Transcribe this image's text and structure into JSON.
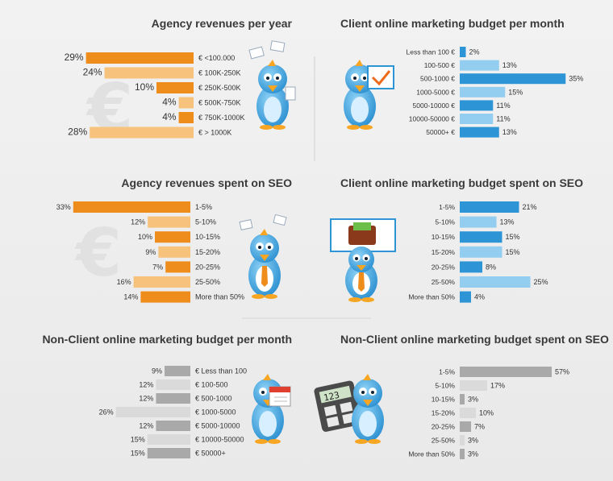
{
  "chart_data": [
    {
      "type": "bar",
      "orientation": "horizontal-left",
      "title": "Agency revenues per year",
      "categories": [
        "€ <100.000",
        "€ 100K-250K",
        "€ 250K-500K",
        "€ 500K-750K",
        "€ 750K-1000K",
        "€ > 1000K"
      ],
      "values": [
        29,
        24,
        10,
        4,
        4,
        28
      ],
      "value_labels": [
        "29%",
        "24%",
        "10%",
        "4%",
        "4%",
        "28%"
      ],
      "colors": [
        "#ee8c1c",
        "#f7c27b",
        "#ee8c1c",
        "#f7c27b",
        "#ee8c1c",
        "#f7c27b"
      ]
    },
    {
      "type": "bar",
      "orientation": "horizontal-right",
      "title": "Client online marketing budget per month",
      "categories": [
        "Less than 100 €",
        "100-500 €",
        "500-1000 €",
        "1000-5000 €",
        "5000-10000 €",
        "10000-50000 €",
        "50000+ €"
      ],
      "values": [
        2,
        13,
        35,
        15,
        11,
        11,
        13
      ],
      "value_labels": [
        "2%",
        "13%",
        "35%",
        "15%",
        "11%",
        "11%",
        "13%"
      ],
      "colors": [
        "#2d94d6",
        "#93cdf0",
        "#2d94d6",
        "#93cdf0",
        "#2d94d6",
        "#93cdf0",
        "#2d94d6"
      ]
    },
    {
      "type": "bar",
      "orientation": "horizontal-left",
      "title": "Agency revenues spent on SEO",
      "categories": [
        "1-5%",
        "5-10%",
        "10-15%",
        "15-20%",
        "20-25%",
        "25-50%",
        "More than 50%"
      ],
      "values": [
        33,
        12,
        10,
        9,
        7,
        16,
        14
      ],
      "value_labels": [
        "33%",
        "12%",
        "10%",
        "9%",
        "7%",
        "16%",
        "14%"
      ],
      "colors": [
        "#ee8c1c",
        "#f7c27b",
        "#ee8c1c",
        "#f7c27b",
        "#ee8c1c",
        "#f7c27b",
        "#ee8c1c"
      ]
    },
    {
      "type": "bar",
      "orientation": "horizontal-right",
      "title": "Client online marketing budget spent on SEO",
      "categories": [
        "1-5%",
        "5-10%",
        "10-15%",
        "15-20%",
        "20-25%",
        "25-50%",
        "More than 50%"
      ],
      "values": [
        21,
        13,
        15,
        15,
        8,
        25,
        4
      ],
      "value_labels": [
        "21%",
        "13%",
        "15%",
        "15%",
        "8%",
        "25%",
        "4%"
      ],
      "colors": [
        "#2d94d6",
        "#93cdf0",
        "#2d94d6",
        "#93cdf0",
        "#2d94d6",
        "#93cdf0",
        "#2d94d6"
      ]
    },
    {
      "type": "bar",
      "orientation": "horizontal-left",
      "title": "Non-Client online marketing budget per month",
      "categories": [
        "€ Less than 100",
        "€ 100-500",
        "€ 500-1000",
        "€ 1000-5000",
        "€ 5000-10000",
        "€ 10000-50000",
        "€ 50000+"
      ],
      "values": [
        9,
        12,
        12,
        26,
        12,
        15,
        15
      ],
      "value_labels": [
        "9%",
        "12%",
        "12%",
        "26%",
        "12%",
        "15%",
        "15%"
      ],
      "colors": [
        "#a9a9a9",
        "#dadada",
        "#a9a9a9",
        "#dadada",
        "#a9a9a9",
        "#dadada",
        "#a9a9a9"
      ]
    },
    {
      "type": "bar",
      "orientation": "horizontal-right",
      "title": "Non-Client online marketing budget spent on SEO",
      "categories": [
        "1-5%",
        "5-10%",
        "10-15%",
        "15-20%",
        "20-25%",
        "25-50%",
        "More than 50%"
      ],
      "values": [
        57,
        17,
        3,
        10,
        7,
        3,
        3
      ],
      "value_labels": [
        "57%",
        "17%",
        "3%",
        "10%",
        "7%",
        "3%",
        "3%"
      ],
      "colors": [
        "#a9a9a9",
        "#dadada",
        "#a9a9a9",
        "#dadada",
        "#a9a9a9",
        "#dadada",
        "#a9a9a9"
      ]
    }
  ],
  "illustrations": {
    "icons": [
      "euro-sign-icon",
      "bird-mascot-icon",
      "checkmark-sign-icon",
      "money-wallet-sign-icon",
      "calendar-icon",
      "calculator-icon"
    ],
    "calculator_display": "123"
  }
}
